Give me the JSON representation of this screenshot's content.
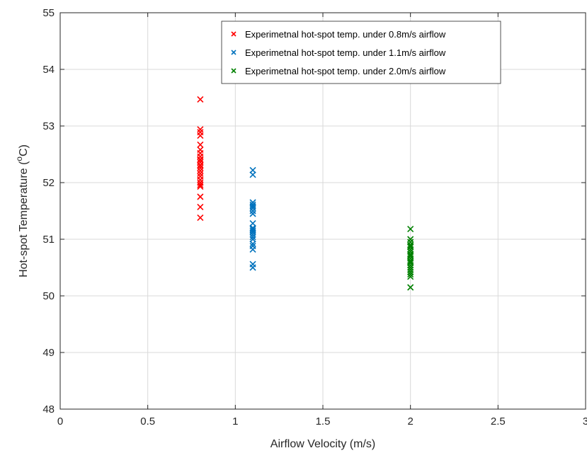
{
  "chart_data": {
    "type": "scatter",
    "title": "",
    "xlabel": "Airflow Velocity (m/s)",
    "ylabel_main": "Hot-spot Temperature (",
    "ylabel_superscript": "o",
    "ylabel_tail": "C)",
    "xlim": [
      0,
      3
    ],
    "ylim": [
      48,
      55
    ],
    "xticks": [
      0,
      0.5,
      1,
      1.5,
      2,
      2.5,
      3
    ],
    "xtick_labels": [
      "0",
      "0.5",
      "1",
      "1.5",
      "2",
      "2.5",
      "3"
    ],
    "yticks": [
      48,
      49,
      50,
      51,
      52,
      53,
      54,
      55
    ],
    "ytick_labels": [
      "48",
      "49",
      "50",
      "51",
      "52",
      "53",
      "54",
      "55"
    ],
    "grid": true,
    "legend_position": "top-right",
    "marker": "x",
    "series": [
      {
        "name": "Experimetnal hot-spot temp. under 0.8m/s airflow",
        "color": "#ff0000",
        "x": [
          0.8,
          0.8,
          0.8,
          0.8,
          0.8,
          0.8,
          0.8,
          0.8,
          0.8,
          0.8,
          0.8,
          0.8,
          0.8,
          0.8,
          0.8,
          0.8,
          0.8,
          0.8,
          0.8,
          0.8,
          0.8,
          0.8,
          0.8,
          0.8
        ],
        "y": [
          53.47,
          52.94,
          52.89,
          52.83,
          52.67,
          52.58,
          52.52,
          52.46,
          52.41,
          52.36,
          52.31,
          52.26,
          52.21,
          52.16,
          52.11,
          52.05,
          52.0,
          51.96,
          51.93,
          51.75,
          51.57,
          51.38,
          52.4,
          52.3
        ]
      },
      {
        "name": "Experimetnal hot-spot temp. under 1.1m/s airflow",
        "color": "#0072bd",
        "x": [
          1.1,
          1.1,
          1.1,
          1.1,
          1.1,
          1.1,
          1.1,
          1.1,
          1.1,
          1.1,
          1.1,
          1.1,
          1.1,
          1.1,
          1.1,
          1.1,
          1.1,
          1.1,
          1.1,
          1.1,
          1.1
        ],
        "y": [
          52.22,
          52.14,
          51.65,
          51.61,
          51.55,
          51.5,
          51.45,
          51.28,
          51.2,
          51.15,
          51.12,
          51.08,
          51.04,
          51.0,
          50.92,
          50.88,
          50.82,
          50.56,
          50.5,
          51.58,
          51.18
        ]
      },
      {
        "name": "Experimetnal hot-spot temp. under 2.0m/s airflow",
        "color": "#008000",
        "x": [
          2.0,
          2.0,
          2.0,
          2.0,
          2.0,
          2.0,
          2.0,
          2.0,
          2.0,
          2.0,
          2.0,
          2.0,
          2.0,
          2.0,
          2.0,
          2.0,
          2.0,
          2.0,
          2.0,
          2.0,
          2.0,
          2.0
        ],
        "y": [
          51.18,
          51.0,
          50.95,
          50.9,
          50.86,
          50.82,
          50.78,
          50.74,
          50.7,
          50.66,
          50.62,
          50.58,
          50.54,
          50.5,
          50.46,
          50.42,
          50.38,
          50.34,
          50.15,
          50.88,
          50.72,
          50.6
        ]
      }
    ]
  }
}
